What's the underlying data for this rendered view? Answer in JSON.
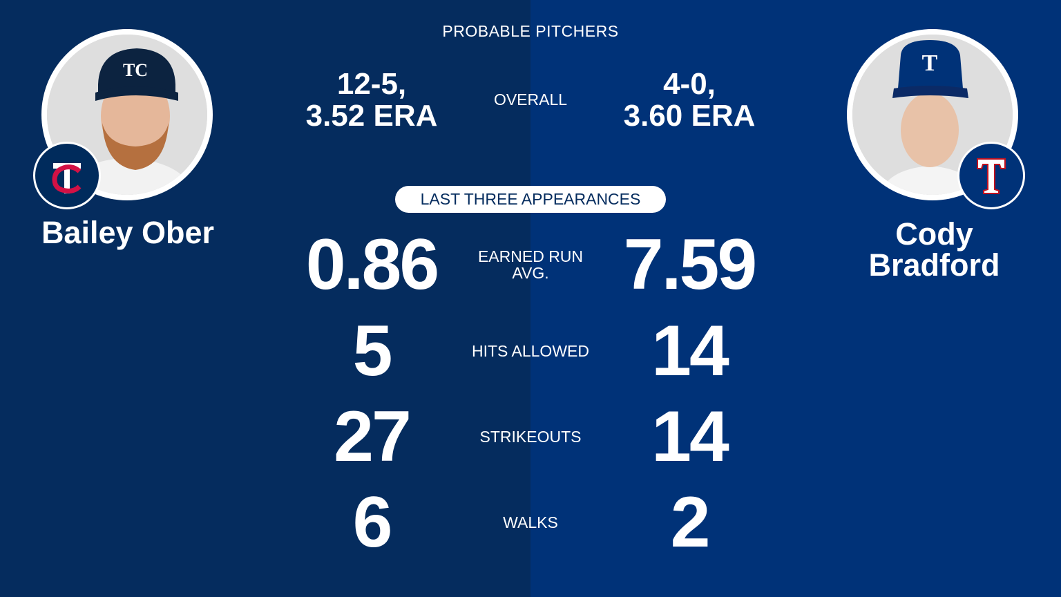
{
  "colors": {
    "left_bg": "#052C5E",
    "right_bg": "#003278",
    "text": "#FFFFFF",
    "twins_red": "#D31145",
    "rangers_red": "#C0111F"
  },
  "header": "PROBABLE PITCHERS",
  "left_pitcher": {
    "name": "Bailey Ober",
    "team_logo_icon": "twins-tc-logo-icon",
    "record": "12-5,\n3.52 ERA"
  },
  "right_pitcher": {
    "name": "Cody\nBradford",
    "team_logo_icon": "rangers-t-logo-icon",
    "record": "4-0,\n3.60 ERA"
  },
  "overall_label": "OVERALL",
  "section_label": "LAST THREE APPEARANCES",
  "stats": [
    {
      "label": "EARNED RUN\nAVG.",
      "left": "0.86",
      "right": "7.59"
    },
    {
      "label": "HITS ALLOWED",
      "left": "5",
      "right": "14"
    },
    {
      "label": "STRIKEOUTS",
      "left": "27",
      "right": "14"
    },
    {
      "label": "WALKS",
      "left": "6",
      "right": "2"
    }
  ]
}
